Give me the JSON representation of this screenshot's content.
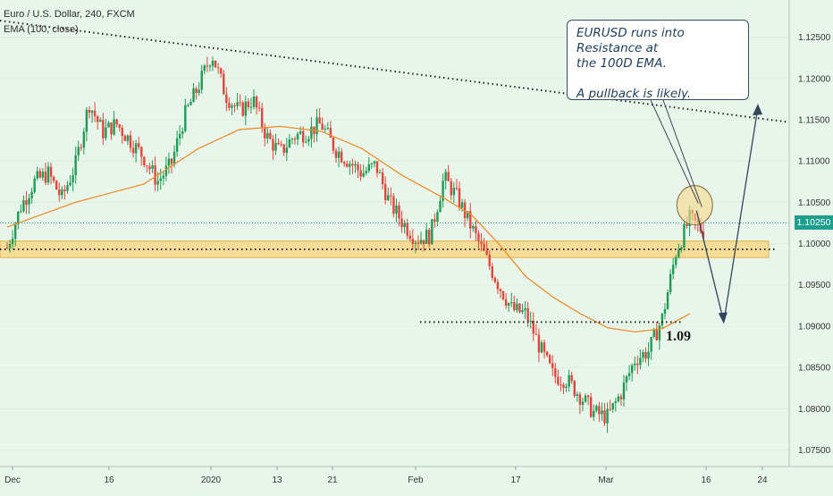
{
  "header": {
    "title": "Euro / U.S. Dollar, 240, FXCM",
    "indicator": "EMA (100, close)"
  },
  "note": {
    "line1": "EURUSD runs into Resistance at",
    "line2": "the 100D EMA.",
    "line3": "A pullback is likely."
  },
  "support_label": "1.09",
  "last_price": "1.10250",
  "colors": {
    "background": "#e8f5ea",
    "up": "#1f9b55",
    "down": "#e2453c",
    "ema": "#f08c2a",
    "zone": "#f7d88a",
    "price_tag": "#1e9e8c"
  },
  "chart_data": {
    "type": "candlestick",
    "symbol": "Euro / U.S. Dollar",
    "timeframe": "240",
    "x_tick_labels": [
      "Dec",
      "16",
      "2020",
      "13",
      "21",
      "Feb",
      "17",
      "Mar",
      "16",
      "24"
    ],
    "y_tick_labels": [
      "1.07500",
      "1.08000",
      "1.08500",
      "1.09000",
      "1.09500",
      "1.10000",
      "1.10500",
      "1.11000",
      "1.11500",
      "1.12000",
      "1.12500"
    ],
    "ylim": [
      1.073,
      1.1295
    ],
    "close_path": [
      [
        0,
        1.0995
      ],
      [
        2,
        1.1045
      ],
      [
        4,
        1.1075
      ],
      [
        6,
        1.1085
      ],
      [
        8,
        1.1055
      ],
      [
        10,
        1.1095
      ],
      [
        12,
        1.117
      ],
      [
        14,
        1.1135
      ],
      [
        16,
        1.1145
      ],
      [
        18,
        1.1125
      ],
      [
        20,
        1.1105
      ],
      [
        22,
        1.1075
      ],
      [
        24,
        1.1095
      ],
      [
        26,
        1.1155
      ],
      [
        28,
        1.119
      ],
      [
        30,
        1.123
      ],
      [
        32,
        1.118
      ],
      [
        34,
        1.116
      ],
      [
        36,
        1.1175
      ],
      [
        38,
        1.113
      ],
      [
        40,
        1.111
      ],
      [
        42,
        1.113
      ],
      [
        44,
        1.1135
      ],
      [
        46,
        1.1145
      ],
      [
        48,
        1.1115
      ],
      [
        50,
        1.11
      ],
      [
        52,
        1.1085
      ],
      [
        54,
        1.1095
      ],
      [
        56,
        1.105
      ],
      [
        58,
        1.1025
      ],
      [
        60,
        1.1005
      ],
      [
        62,
        1.101
      ],
      [
        64,
        1.108
      ],
      [
        66,
        1.1055
      ],
      [
        68,
        1.102
      ],
      [
        70,
        1.0985
      ],
      [
        72,
        1.095
      ],
      [
        74,
        1.092
      ],
      [
        76,
        1.0915
      ],
      [
        78,
        1.0875
      ],
      [
        80,
        1.084
      ],
      [
        82,
        1.0835
      ],
      [
        84,
        1.0815
      ],
      [
        86,
        1.0795
      ],
      [
        88,
        1.079
      ],
      [
        90,
        1.082
      ],
      [
        92,
        1.086
      ],
      [
        94,
        1.087
      ],
      [
        96,
        1.091
      ],
      [
        98,
        1.099
      ],
      [
        100,
        1.103
      ],
      [
        102,
        1.1015
      ]
    ],
    "ema_path": [
      [
        0,
        1.102
      ],
      [
        10,
        1.105
      ],
      [
        20,
        1.1072
      ],
      [
        28,
        1.1115
      ],
      [
        34,
        1.1138
      ],
      [
        40,
        1.1142
      ],
      [
        46,
        1.1136
      ],
      [
        52,
        1.1115
      ],
      [
        58,
        1.1082
      ],
      [
        64,
        1.1055
      ],
      [
        68,
        1.1035
      ],
      [
        72,
        1.1
      ],
      [
        76,
        1.096
      ],
      [
        80,
        1.0935
      ],
      [
        84,
        1.0915
      ],
      [
        88,
        1.0898
      ],
      [
        92,
        1.0893
      ],
      [
        96,
        1.0897
      ],
      [
        100,
        1.0915
      ]
    ],
    "resistance_zone": [
      1.0983,
      1.1003
    ],
    "support_level": 1.0905,
    "trend_line": [
      [
        0,
        1.127
      ],
      [
        102,
        1.1147
      ]
    ],
    "annotation": "EURUSD runs into Resistance at the 100D EMA. A pullback is likely.",
    "projection": [
      [
        101,
        1.104
      ],
      [
        105,
        1.0905
      ],
      [
        110,
        1.1165
      ]
    ]
  }
}
